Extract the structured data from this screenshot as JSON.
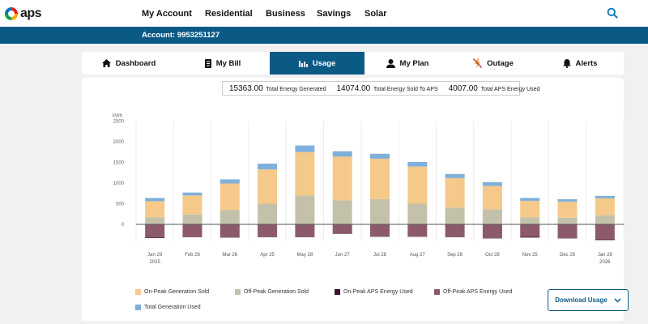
{
  "brand": {
    "logo_text": "aps"
  },
  "nav": {
    "items": [
      "My Account",
      "Residential",
      "Business",
      "Savings",
      "Solar"
    ]
  },
  "account": {
    "text": "Account: 9953251127"
  },
  "tabs": [
    {
      "label": "Dashboard",
      "icon": "home-icon"
    },
    {
      "label": "My Bill",
      "icon": "bill-icon"
    },
    {
      "label": "Usage",
      "icon": "bar-chart-icon",
      "active": true
    },
    {
      "label": "My Plan",
      "icon": "person-icon"
    },
    {
      "label": "Outage",
      "icon": "outage-icon"
    },
    {
      "label": "Alerts",
      "icon": "bell-icon"
    }
  ],
  "summary": {
    "generated_value": "15363.00",
    "generated_label": "Total Energy Generated",
    "sold_value": "14074.00",
    "sold_label": "Total Energy Sold To APS",
    "used_value": "4007.00",
    "used_label": "Total APS Energy Used"
  },
  "chart_data": {
    "type": "bar",
    "ylabel": "kWh",
    "ylim": [
      -500,
      2500
    ],
    "yticks": [
      0,
      500,
      1000,
      1500,
      2000,
      2500
    ],
    "categories": [
      "Jan 29",
      "Feb 26",
      "Mar 26",
      "Apr 25",
      "May 28",
      "Jun 27",
      "Jul 28",
      "Aug 27",
      "Sep 26",
      "Oct 28",
      "Nov 25",
      "Dec 26",
      "Jan 28"
    ],
    "category_sublabels": [
      "2025",
      "",
      "",
      "",
      "",
      "",
      "",
      "",
      "",
      "",
      "",
      "",
      "2026"
    ],
    "series": [
      {
        "name": "Off-Peak Generation Sold",
        "color": "#c3c1aa",
        "values": [
          170,
          240,
          350,
          500,
          700,
          580,
          610,
          500,
          400,
          360,
          170,
          160,
          220
        ]
      },
      {
        "name": "On-Peak Generation Sold",
        "color": "#f4c98a",
        "values": [
          390,
          460,
          640,
          830,
          1050,
          1060,
          980,
          900,
          720,
          570,
          400,
          390,
          410
        ]
      },
      {
        "name": "Total Generation Used",
        "color": "#7fb0dc",
        "values": [
          80,
          70,
          100,
          140,
          160,
          130,
          120,
          110,
          100,
          90,
          70,
          60,
          60
        ]
      },
      {
        "name": "Off-Peak APS Energy Used",
        "color": "#8c5a6b",
        "values": [
          -310,
          -300,
          -310,
          -300,
          -300,
          -220,
          -290,
          -290,
          -300,
          -330,
          -300,
          -330,
          -360
        ]
      },
      {
        "name": "On-Peak APS Energy Used",
        "color": "#3a1230",
        "values": [
          -20,
          -10,
          -10,
          -10,
          -10,
          -10,
          -10,
          -10,
          -10,
          -10,
          -20,
          -10,
          -20
        ]
      }
    ]
  },
  "legend": [
    {
      "label": "On-Peak Generation Sold",
      "color": "#f4c98a"
    },
    {
      "label": "Off-Peak Generation Sold",
      "color": "#c3c1aa"
    },
    {
      "label": "On-Peak APS Energy Used",
      "color": "#3a1230"
    },
    {
      "label": "Off-Peak APS Energy Used",
      "color": "#8c5a6b"
    },
    {
      "label": "Total Generation Used",
      "color": "#7fb0dc"
    }
  ],
  "download": {
    "label": "Download Usage"
  }
}
